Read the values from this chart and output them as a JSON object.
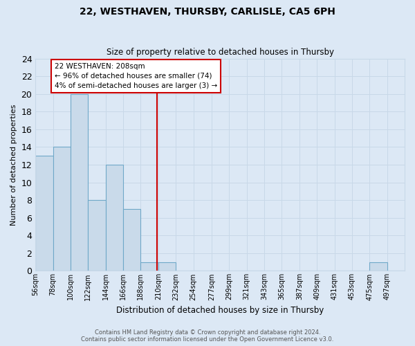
{
  "title": "22, WESTHAVEN, THURSBY, CARLISLE, CA5 6PH",
  "subtitle": "Size of property relative to detached houses in Thursby",
  "xlabel": "Distribution of detached houses by size in Thursby",
  "ylabel": "Number of detached properties",
  "bin_labels": [
    "56sqm",
    "78sqm",
    "100sqm",
    "122sqm",
    "144sqm",
    "166sqm",
    "188sqm",
    "210sqm",
    "232sqm",
    "254sqm",
    "277sqm",
    "299sqm",
    "321sqm",
    "343sqm",
    "365sqm",
    "387sqm",
    "409sqm",
    "431sqm",
    "453sqm",
    "475sqm",
    "497sqm"
  ],
  "bin_edges": [
    56,
    78,
    100,
    122,
    144,
    166,
    188,
    210,
    232,
    254,
    277,
    299,
    321,
    343,
    365,
    387,
    409,
    431,
    453,
    475,
    497,
    519
  ],
  "bar_heights": [
    13,
    14,
    20,
    8,
    12,
    7,
    1,
    1,
    0,
    0,
    0,
    0,
    0,
    0,
    0,
    0,
    0,
    0,
    0,
    1,
    0
  ],
  "bar_color": "#c9daea",
  "bar_edge_color": "#6fa8c8",
  "grid_color": "#c8d8e8",
  "background_color": "#dce8f5",
  "vline_x": 208,
  "vline_color": "#cc0000",
  "ylim": [
    0,
    24
  ],
  "yticks": [
    0,
    2,
    4,
    6,
    8,
    10,
    12,
    14,
    16,
    18,
    20,
    22,
    24
  ],
  "annotation_text": "22 WESTHAVEN: 208sqm\n← 96% of detached houses are smaller (74)\n4% of semi-detached houses are larger (3) →",
  "annotation_box_color": "#ffffff",
  "annotation_box_edge": "#cc0000",
  "footer_line1": "Contains HM Land Registry data © Crown copyright and database right 2024.",
  "footer_line2": "Contains public sector information licensed under the Open Government Licence v3.0."
}
